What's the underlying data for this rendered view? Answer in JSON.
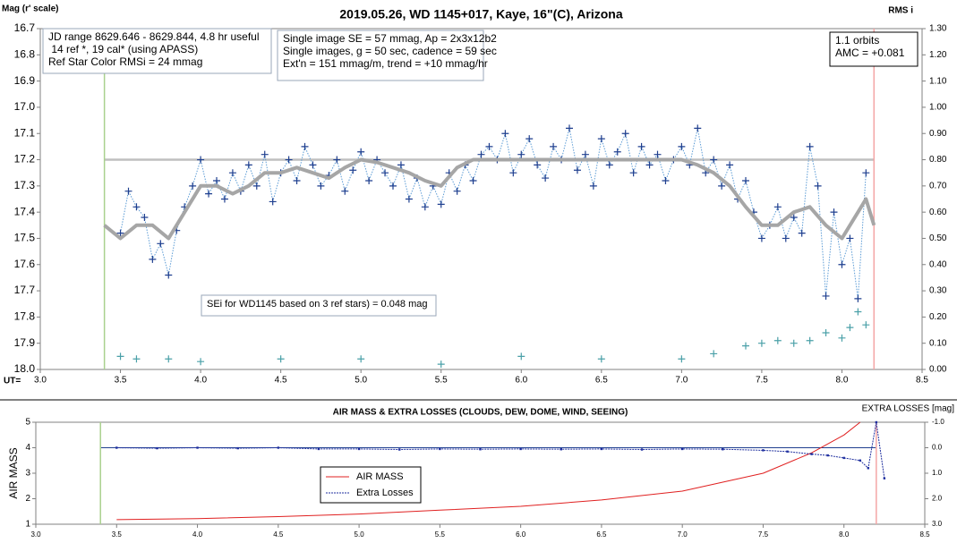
{
  "chart_data": [
    {
      "type": "line",
      "title": "2019.05.26, WD 1145+017, Kaye, 16\"(C), Arizona",
      "ylabel": "Mag (r' scale)",
      "y2label": "RMS i",
      "xlabel": "UT=",
      "xlim": [
        3.0,
        8.5
      ],
      "xticks": [
        {
          "value": 3.0,
          "label": "3.0"
        },
        3.5,
        {
          "value": 4.0,
          "label": "4.0"
        },
        4.5,
        {
          "value": 5.0,
          "label": "5.0"
        },
        5.5,
        {
          "value": 6.0,
          "label": "6.0"
        },
        6.5,
        {
          "value": 7.0,
          "label": "7.0"
        },
        7.5,
        {
          "value": 8.0,
          "label": "8.0"
        },
        8.5
      ],
      "ylim": [
        18.0,
        16.7
      ],
      "yticks": [
        16.7,
        16.8,
        16.9,
        {
          "value": 17.0,
          "label": "17.0"
        },
        17.1,
        17.2,
        17.3,
        17.4,
        17.5,
        17.6,
        17.7,
        17.8,
        17.9,
        {
          "value": 18.0,
          "label": "18.0"
        }
      ],
      "y2lim": [
        0.0,
        1.3
      ],
      "y2ticks": [
        {
          "value": 1.3,
          "label": "1.30"
        },
        {
          "value": 1.2,
          "label": "1.20"
        },
        {
          "value": 1.1,
          "label": "1.10"
        },
        {
          "value": 1.0,
          "label": "1.00"
        },
        {
          "value": 0.9,
          "label": "0.90"
        },
        {
          "value": 0.8,
          "label": "0.80"
        },
        {
          "value": 0.7,
          "label": "0.70"
        },
        {
          "value": 0.6,
          "label": "0.60"
        },
        {
          "value": 0.5,
          "label": "0.50"
        },
        {
          "value": 0.4,
          "label": "0.40"
        },
        {
          "value": 0.3,
          "label": "0.30"
        },
        {
          "value": 0.2,
          "label": "0.20"
        },
        {
          "value": 0.1,
          "label": "0.10"
        },
        {
          "value": 0.0,
          "label": "0.00"
        }
      ],
      "hline": {
        "value": 17.2,
        "color": "#bfbfbf"
      },
      "vlines": [
        {
          "value": 3.4,
          "color": "#a9d18e"
        },
        {
          "value": 8.2,
          "color": "#f4a6a6"
        }
      ],
      "annotations": [
        {
          "lines": [
            "JD range 8629.646 - 8629.844, 4.8 hr useful",
            " 14 ref *, 19 cal* (using APASS)",
            "Ref Star Color RMSi = 24 mmag"
          ]
        },
        {
          "lines": [
            "Single image SE = 57 mmag, Ap = 2x3x12b2",
            "Single images, g = 50 sec, cadence = 59 sec",
            "Ext'n = 151 mmag/m, trend = +10 mmag/hr"
          ]
        },
        {
          "lines": [
            "1.1 orbits",
            "AMC = +0.081"
          ]
        },
        {
          "lines": [
            "SEi for WD1145 based on 3 ref stars) = 0.048 mag"
          ]
        }
      ],
      "series": [
        {
          "style": "markers",
          "color": "#1f3f8f",
          "line_color": "#5b9bd5",
          "x": [
            3.5,
            3.55,
            3.6,
            3.65,
            3.7,
            3.75,
            3.8,
            3.85,
            3.9,
            3.95,
            4.0,
            4.05,
            4.1,
            4.15,
            4.2,
            4.25,
            4.3,
            4.35,
            4.4,
            4.45,
            4.5,
            4.55,
            4.6,
            4.65,
            4.7,
            4.75,
            4.8,
            4.85,
            4.9,
            4.95,
            5.0,
            5.05,
            5.1,
            5.15,
            5.2,
            5.25,
            5.3,
            5.35,
            5.4,
            5.45,
            5.5,
            5.55,
            5.6,
            5.65,
            5.7,
            5.75,
            5.8,
            5.85,
            5.9,
            5.95,
            6.0,
            6.05,
            6.1,
            6.15,
            6.2,
            6.25,
            6.3,
            6.35,
            6.4,
            6.45,
            6.5,
            6.55,
            6.6,
            6.65,
            6.7,
            6.75,
            6.8,
            6.85,
            6.9,
            6.95,
            7.0,
            7.05,
            7.1,
            7.15,
            7.2,
            7.25,
            7.3,
            7.35,
            7.4,
            7.45,
            7.5,
            7.55,
            7.6,
            7.65,
            7.7,
            7.75,
            7.8,
            7.85,
            7.9,
            7.95,
            8.0,
            8.05,
            8.1,
            8.15
          ],
          "values": [
            17.48,
            17.32,
            17.38,
            17.42,
            17.58,
            17.52,
            17.64,
            17.47,
            17.38,
            17.3,
            17.2,
            17.33,
            17.28,
            17.35,
            17.25,
            17.32,
            17.22,
            17.3,
            17.18,
            17.36,
            17.25,
            17.2,
            17.28,
            17.15,
            17.22,
            17.3,
            17.26,
            17.2,
            17.32,
            17.24,
            17.17,
            17.28,
            17.2,
            17.25,
            17.3,
            17.22,
            17.35,
            17.27,
            17.38,
            17.3,
            17.37,
            17.25,
            17.32,
            17.22,
            17.28,
            17.18,
            17.15,
            17.2,
            17.1,
            17.25,
            17.18,
            17.12,
            17.22,
            17.27,
            17.15,
            17.2,
            17.08,
            17.24,
            17.18,
            17.3,
            17.12,
            17.22,
            17.17,
            17.1,
            17.25,
            17.15,
            17.22,
            17.18,
            17.28,
            17.2,
            17.15,
            17.22,
            17.08,
            17.25,
            17.2,
            17.3,
            17.22,
            17.35,
            17.28,
            17.4,
            17.5,
            17.45,
            17.38,
            17.5,
            17.42,
            17.48,
            17.15,
            17.3,
            17.72,
            17.4,
            17.6,
            17.5,
            17.73,
            17.25
          ]
        },
        {
          "style": "line",
          "color": "#a6a6a6",
          "width": 4,
          "x": [
            3.4,
            3.5,
            3.6,
            3.7,
            3.8,
            3.9,
            4.0,
            4.1,
            4.2,
            4.3,
            4.4,
            4.5,
            4.6,
            4.7,
            4.8,
            4.9,
            5.0,
            5.1,
            5.2,
            5.3,
            5.4,
            5.5,
            5.6,
            5.7,
            5.8,
            5.9,
            6.0,
            6.1,
            6.2,
            6.3,
            6.4,
            6.5,
            6.6,
            6.7,
            6.8,
            6.9,
            7.0,
            7.1,
            7.2,
            7.3,
            7.4,
            7.5,
            7.6,
            7.7,
            7.8,
            7.9,
            8.0,
            8.1,
            8.15,
            8.2
          ],
          "values": [
            17.45,
            17.5,
            17.45,
            17.45,
            17.5,
            17.4,
            17.3,
            17.3,
            17.33,
            17.3,
            17.25,
            17.25,
            17.23,
            17.25,
            17.27,
            17.23,
            17.2,
            17.21,
            17.23,
            17.25,
            17.28,
            17.3,
            17.23,
            17.2,
            17.2,
            17.2,
            17.2,
            17.2,
            17.2,
            17.2,
            17.2,
            17.2,
            17.2,
            17.2,
            17.2,
            17.2,
            17.2,
            17.22,
            17.25,
            17.3,
            17.38,
            17.45,
            17.45,
            17.4,
            17.38,
            17.45,
            17.5,
            17.4,
            17.35,
            17.45
          ]
        },
        {
          "style": "markers",
          "axis": "y2",
          "color": "#4aa0a8",
          "x": [
            3.5,
            3.6,
            3.8,
            4.0,
            4.5,
            5.0,
            5.5,
            6.0,
            6.5,
            7.0,
            7.2,
            7.4,
            7.5,
            7.6,
            7.7,
            7.8,
            7.9,
            8.0,
            8.05,
            8.1,
            8.15
          ],
          "values": [
            0.05,
            0.04,
            0.04,
            0.03,
            0.04,
            0.04,
            0.02,
            0.05,
            0.04,
            0.04,
            0.06,
            0.09,
            0.1,
            0.11,
            0.1,
            0.11,
            0.14,
            0.12,
            0.16,
            0.22,
            0.17
          ]
        }
      ]
    },
    {
      "type": "line",
      "title": "AIR MASS & EXTRA LOSSES (CLOUDS, DEW, DOME, WIND, SEEING)",
      "ylabel": "AIR MASS",
      "y2label": "EXTRA LOSSES [mag]",
      "xlim": [
        3.0,
        8.5
      ],
      "xticks": [
        {
          "value": 3.0,
          "label": "3.0"
        },
        3.5,
        {
          "value": 4.0,
          "label": "4.0"
        },
        4.5,
        {
          "value": 5.0,
          "label": "5.0"
        },
        5.5,
        {
          "value": 6.0,
          "label": "6.0"
        },
        6.5,
        {
          "value": 7.0,
          "label": "7.0"
        },
        7.5,
        {
          "value": 8.0,
          "label": "8.0"
        },
        8.5
      ],
      "ylim": [
        1,
        5
      ],
      "yticks": [
        1,
        2,
        3,
        4,
        5
      ],
      "y2lim": [
        3.0,
        -1.0
      ],
      "y2ticks": [
        {
          "value": -1.0,
          "label": "-1.0"
        },
        {
          "value": 0.0,
          "label": "0.0"
        },
        {
          "value": 1.0,
          "label": "1.0"
        },
        {
          "value": 2.0,
          "label": "2.0"
        },
        {
          "value": 3.0,
          "label": "3.0"
        }
      ],
      "hline": {
        "value": 0.0,
        "axis": "y2",
        "color": "#1f3f8f"
      },
      "vlines": [
        {
          "value": 3.4,
          "color": "#a9d18e"
        },
        {
          "value": 8.2,
          "color": "#f4a6a6"
        }
      ],
      "series": [
        {
          "name": "AIR MASS",
          "style": "line",
          "color": "#e02020",
          "width": 1,
          "x": [
            3.5,
            4.0,
            4.5,
            5.0,
            5.5,
            6.0,
            6.5,
            7.0,
            7.5,
            7.8,
            8.0,
            8.1
          ],
          "values": [
            1.18,
            1.22,
            1.3,
            1.4,
            1.55,
            1.7,
            1.95,
            2.3,
            3.0,
            3.8,
            4.5,
            5.0
          ]
        },
        {
          "name": "Extra Losses",
          "style": "dotted",
          "axis": "y2",
          "color": "#1f2f9f",
          "x": [
            3.5,
            3.75,
            4.0,
            4.25,
            4.5,
            4.75,
            5.0,
            5.25,
            5.5,
            5.75,
            6.0,
            6.25,
            6.5,
            6.75,
            7.0,
            7.25,
            7.5,
            7.65,
            7.8,
            7.9,
            8.0,
            8.1,
            8.15,
            8.2,
            8.25
          ],
          "values": [
            0.0,
            0.02,
            0.0,
            0.02,
            0.0,
            0.05,
            0.05,
            0.07,
            0.05,
            0.06,
            0.05,
            0.06,
            0.05,
            0.07,
            0.05,
            0.06,
            0.1,
            0.15,
            0.25,
            0.3,
            0.4,
            0.5,
            0.8,
            -1.0,
            1.2
          ]
        }
      ]
    }
  ]
}
